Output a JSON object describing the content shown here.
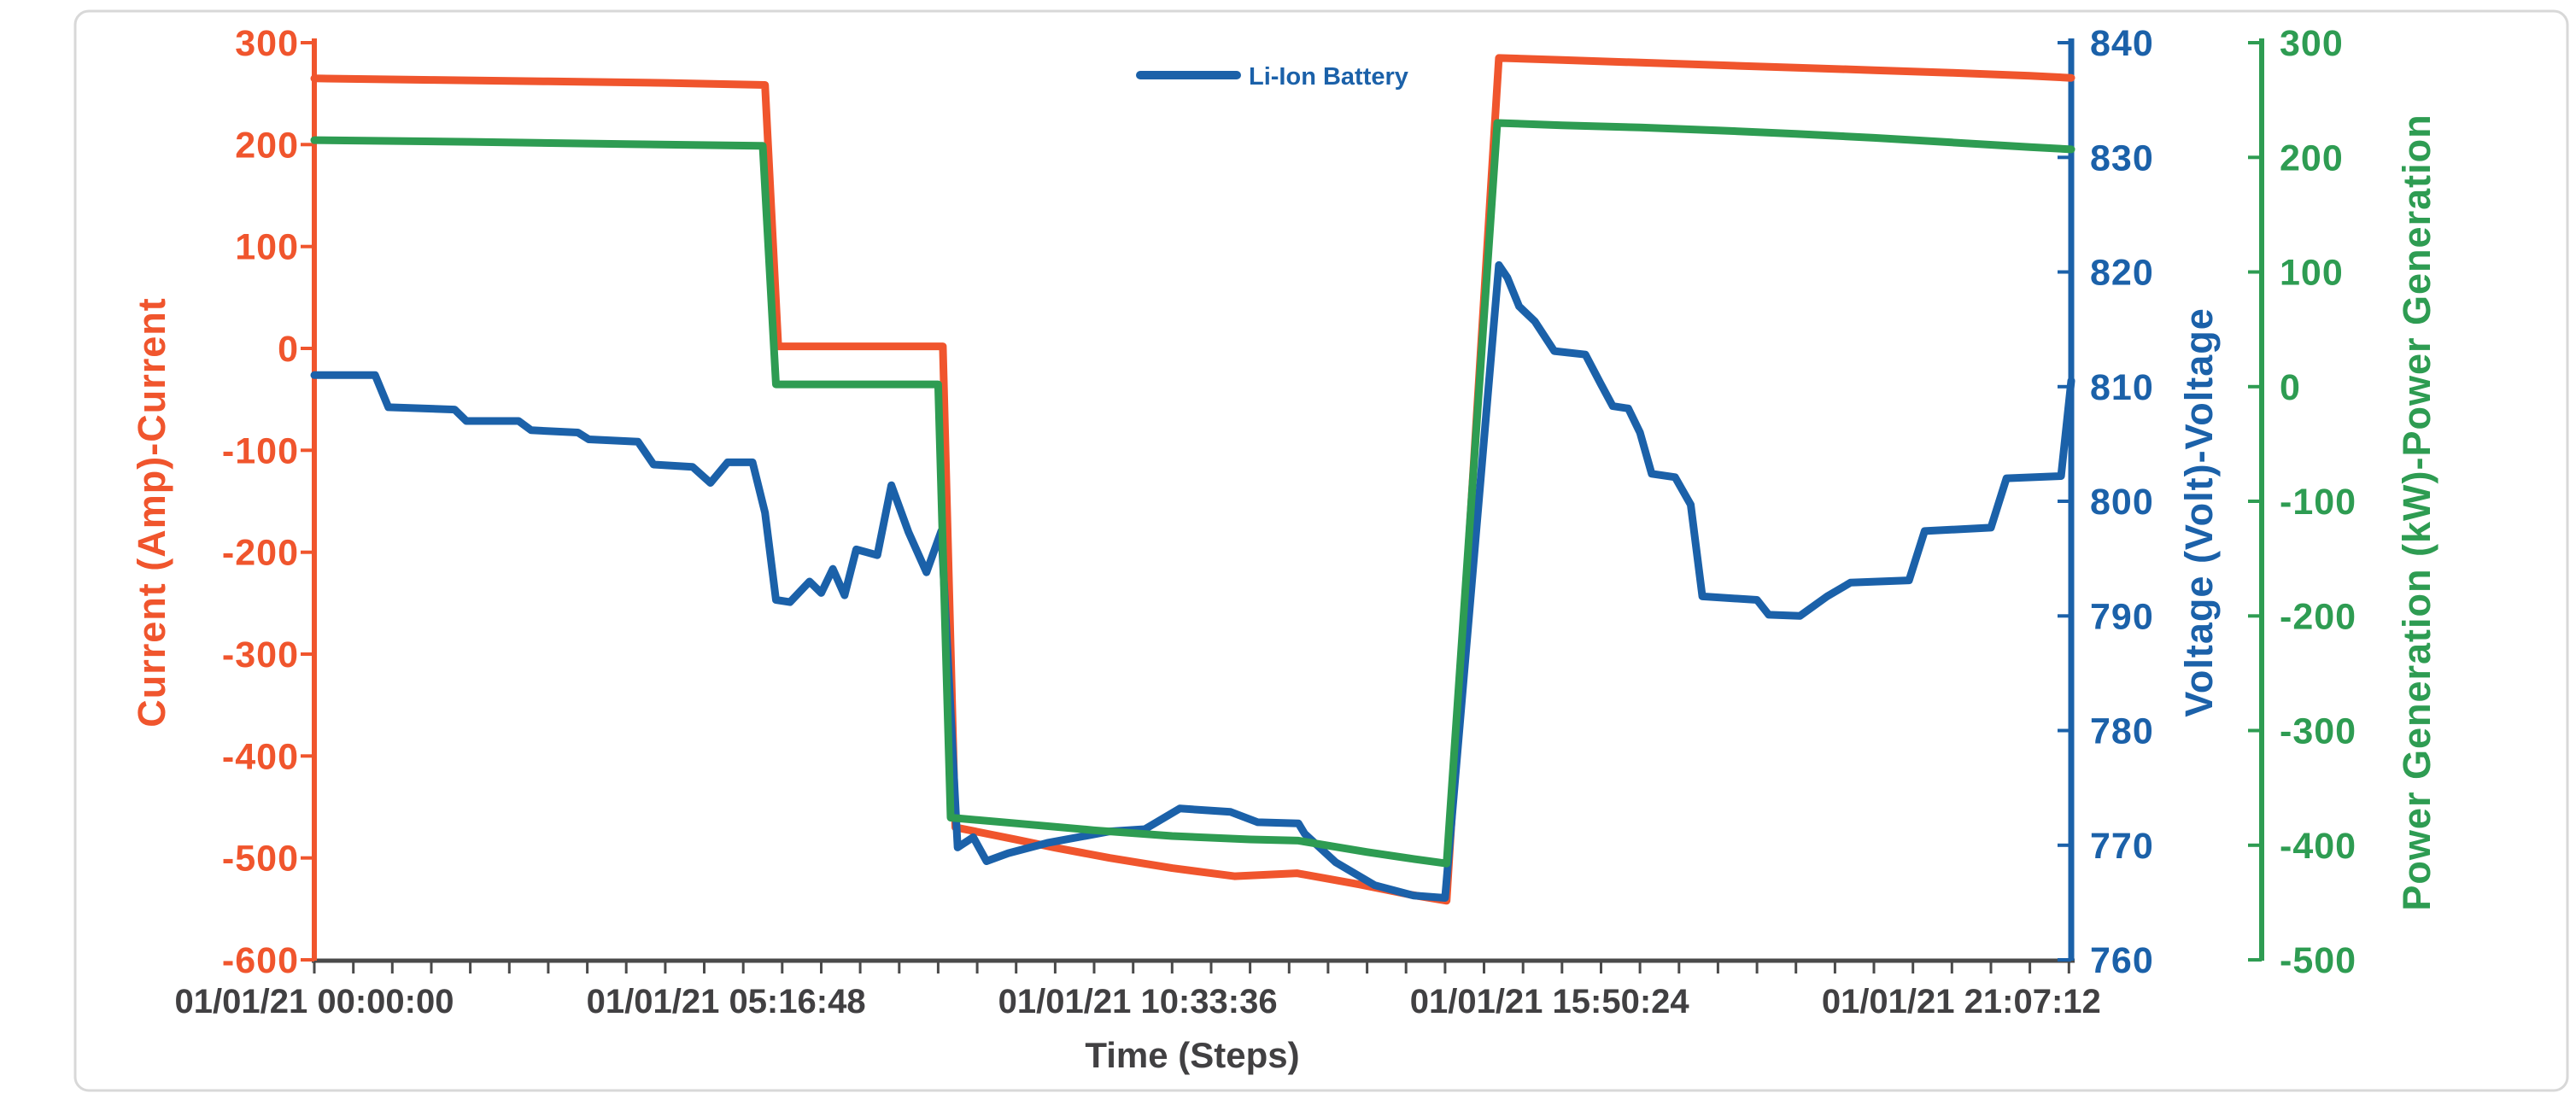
{
  "chart_data": {
    "type": "line",
    "title": "",
    "legend": {
      "position": "top-center",
      "entries": [
        {
          "label": "Li-Ion Battery",
          "color": "#1B61A9",
          "series": "voltage"
        }
      ]
    },
    "x_axis": {
      "title": "Time (Steps)",
      "color": "#414042",
      "range_hours": [
        0,
        22.53
      ],
      "minor_tick_interval_hours": 0.5,
      "tick_labels": [
        {
          "t": 0,
          "label": "01/01/21 00:00:00"
        },
        {
          "t": 5.28,
          "label": "01/01/21 05:16:48"
        },
        {
          "t": 10.56,
          "label": "01/01/21 10:33:36"
        },
        {
          "t": 15.84,
          "label": "01/01/21 15:50:24"
        },
        {
          "t": 21.12,
          "label": "01/01/21 21:07:12"
        }
      ]
    },
    "y_axes": [
      {
        "id": "current",
        "title": "Current (Amp)-Current",
        "unit": "Amp",
        "color": "#F0552D",
        "side": "left",
        "min": -600,
        "max": 300,
        "ticks": [
          300,
          200,
          100,
          0,
          -100,
          -200,
          -300,
          -400,
          -500,
          -600
        ]
      },
      {
        "id": "voltage",
        "title": "Voltage (Volt)-Voltage",
        "unit": "Volt",
        "color": "#1B61A9",
        "side": "right",
        "min": 760,
        "max": 840,
        "ticks": [
          840,
          830,
          820,
          810,
          800,
          790,
          780,
          770,
          760
        ]
      },
      {
        "id": "power",
        "title": "Power Generation (kW)-Power Generation",
        "unit": "kW",
        "color": "#2E9C52",
        "side": "right-outer",
        "min": -500,
        "max": 300,
        "ticks": [
          300,
          200,
          100,
          0,
          -100,
          -200,
          -300,
          -400,
          -500
        ]
      }
    ],
    "series": [
      {
        "name": "Current (Amp)",
        "axis": "current",
        "color": "#F0552D",
        "points": [
          [
            0,
            265
          ],
          [
            1.5,
            263.5
          ],
          [
            3,
            262
          ],
          [
            4.5,
            260.5
          ],
          [
            5.78,
            258.5
          ],
          [
            5.95,
            2
          ],
          [
            8.06,
            2
          ],
          [
            8.22,
            -470
          ],
          [
            9,
            -482
          ],
          [
            9.5,
            -490
          ],
          [
            10.2,
            -500
          ],
          [
            11,
            -510
          ],
          [
            11.8,
            -518
          ],
          [
            12.6,
            -515
          ],
          [
            13.4,
            -526
          ],
          [
            14.05,
            -536
          ],
          [
            14.52,
            -542
          ],
          [
            15.19,
            285
          ],
          [
            16,
            283
          ],
          [
            17,
            280.5
          ],
          [
            18,
            278
          ],
          [
            19,
            275.5
          ],
          [
            20,
            273
          ],
          [
            21,
            270.5
          ],
          [
            21.5,
            269
          ],
          [
            22,
            267.5
          ],
          [
            22.53,
            265.5
          ]
        ]
      },
      {
        "name": "Li-Ion Battery (Voltage)",
        "axis": "voltage",
        "color": "#1B61A9",
        "points": [
          [
            0,
            811
          ],
          [
            0.78,
            811
          ],
          [
            0.95,
            808.2
          ],
          [
            1.8,
            808
          ],
          [
            1.95,
            807
          ],
          [
            2.62,
            807
          ],
          [
            2.78,
            806.2
          ],
          [
            3.38,
            806
          ],
          [
            3.52,
            805.4
          ],
          [
            4.15,
            805.2
          ],
          [
            4.35,
            803.2
          ],
          [
            4.85,
            803
          ],
          [
            5.08,
            801.6
          ],
          [
            5.3,
            803.4
          ],
          [
            5.62,
            803.4
          ],
          [
            5.78,
            799
          ],
          [
            5.92,
            791.4
          ],
          [
            6.1,
            791.2
          ],
          [
            6.35,
            793
          ],
          [
            6.5,
            792
          ],
          [
            6.65,
            794.1
          ],
          [
            6.8,
            791.8
          ],
          [
            6.95,
            795.8
          ],
          [
            7.22,
            795.3
          ],
          [
            7.4,
            801.4
          ],
          [
            7.62,
            797.3
          ],
          [
            7.85,
            793.8
          ],
          [
            8.04,
            797.4
          ],
          [
            8.25,
            769.8
          ],
          [
            8.45,
            770.7
          ],
          [
            8.62,
            768.6
          ],
          [
            8.9,
            769.3
          ],
          [
            9.4,
            770.2
          ],
          [
            10.2,
            771.2
          ],
          [
            10.65,
            771.4
          ],
          [
            11.1,
            773.2
          ],
          [
            11.75,
            772.9
          ],
          [
            12.1,
            772
          ],
          [
            12.62,
            771.9
          ],
          [
            12.7,
            771
          ],
          [
            13.1,
            768.5
          ],
          [
            13.6,
            766.5
          ],
          [
            14.1,
            765.6
          ],
          [
            14.5,
            765.4
          ],
          [
            15.19,
            820.6
          ],
          [
            15.3,
            819.5
          ],
          [
            15.45,
            817
          ],
          [
            15.65,
            815.7
          ],
          [
            15.9,
            813.1
          ],
          [
            16.3,
            812.8
          ],
          [
            16.5,
            810.2
          ],
          [
            16.65,
            808.3
          ],
          [
            16.85,
            808.1
          ],
          [
            17.0,
            806
          ],
          [
            17.15,
            802.4
          ],
          [
            17.45,
            802.1
          ],
          [
            17.65,
            799.7
          ],
          [
            17.8,
            791.7
          ],
          [
            18.5,
            791.4
          ],
          [
            18.65,
            790.1
          ],
          [
            19.05,
            790
          ],
          [
            19.4,
            791.7
          ],
          [
            19.7,
            792.9
          ],
          [
            20.45,
            793.1
          ],
          [
            20.65,
            797.4
          ],
          [
            21.5,
            797.7
          ],
          [
            21.7,
            802
          ],
          [
            22.4,
            802.2
          ],
          [
            22.53,
            810.5
          ]
        ]
      },
      {
        "name": "Power Generation (kW)",
        "axis": "power",
        "color": "#2E9C52",
        "points": [
          [
            0,
            215
          ],
          [
            2,
            213.5
          ],
          [
            4,
            211.5
          ],
          [
            5.75,
            210
          ],
          [
            5.92,
            2
          ],
          [
            8.0,
            2
          ],
          [
            8.16,
            -376
          ],
          [
            9,
            -381
          ],
          [
            10,
            -387
          ],
          [
            11,
            -392
          ],
          [
            12,
            -395
          ],
          [
            12.62,
            -396
          ],
          [
            13.5,
            -406
          ],
          [
            14.1,
            -412
          ],
          [
            14.52,
            -416
          ],
          [
            15.17,
            230
          ],
          [
            16,
            228
          ],
          [
            17,
            226
          ],
          [
            18,
            223.5
          ],
          [
            19,
            220.5
          ],
          [
            20,
            217
          ],
          [
            21,
            213
          ],
          [
            22,
            209
          ],
          [
            22.53,
            207
          ]
        ]
      }
    ]
  }
}
